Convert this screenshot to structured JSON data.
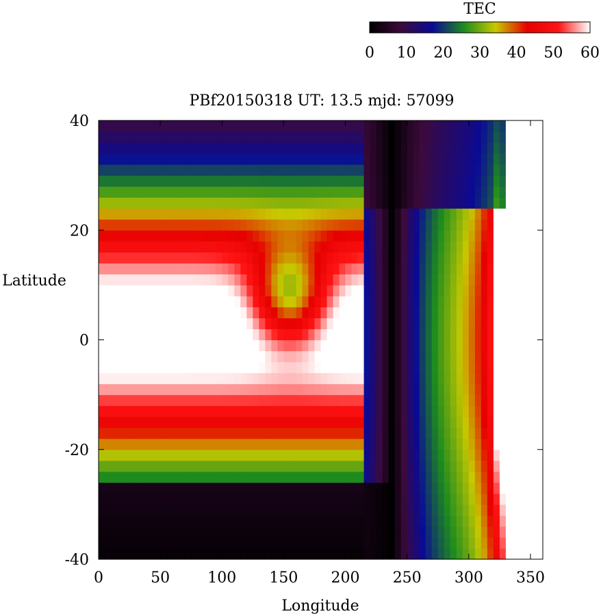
{
  "chart_data": {
    "type": "heatmap",
    "title": "PBf20150318  UT: 13.5  mjd: 57099",
    "xlabel": "Longitude",
    "ylabel": "Latitude",
    "xlim": [
      0,
      360
    ],
    "ylim": [
      -40,
      40
    ],
    "xticks": [
      0,
      50,
      100,
      150,
      200,
      250,
      300,
      350
    ],
    "yticks": [
      -40,
      -20,
      0,
      20,
      40
    ],
    "colorbar": {
      "label": "TEC",
      "range": [
        0,
        60
      ],
      "ticks": [
        0,
        10,
        20,
        30,
        40,
        50,
        60
      ],
      "colors": [
        "#000000",
        "#3c0a3c",
        "#0a0a96",
        "#1e8c1e",
        "#c8c800",
        "#e60000",
        "#ff1414",
        "#ffffff"
      ]
    },
    "grid": {
      "cell_size_lon": 5,
      "cell_size_lat": 2,
      "lon_start": 0,
      "lat_start": -40
    }
  }
}
